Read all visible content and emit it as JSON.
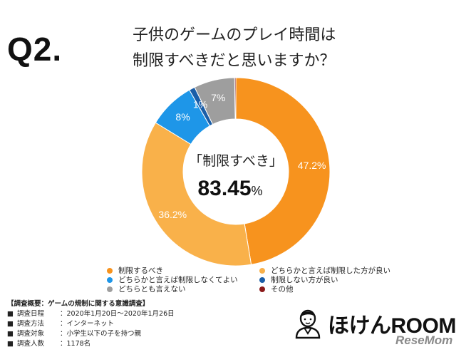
{
  "question_label": "Q2.",
  "title_lines": [
    "子供のゲームのプレイ時間は",
    "制限すべきだと思いますか？"
  ],
  "center": {
    "label": "「制限すべき」",
    "value": "83.45",
    "unit": "%"
  },
  "chart_data": {
    "type": "pie",
    "donut": true,
    "categories": [
      "制限するべき",
      "どちらかと言えば制限した方が良い",
      "どちらかと言えば制限しなくてよい",
      "制限しない方が良い",
      "どちらとも言えない",
      "その他"
    ],
    "values": [
      47.2,
      36.2,
      8,
      1,
      7,
      0.2
    ],
    "data_labels": [
      "47.2%",
      "36.2%",
      "8%",
      "1%",
      "7%",
      ""
    ],
    "colors": [
      "#F7931E",
      "#F9B14A",
      "#1E96E8",
      "#1A5EA8",
      "#9E9E9E",
      "#8B1A1A"
    ],
    "label_colors": [
      "#ffffff",
      "#ffffff",
      "#ffffff",
      "#ffffff",
      "#ffffff",
      "#ffffff"
    ],
    "legend_position": "bottom"
  },
  "legend": [
    {
      "label": "制限するべき",
      "color": "#F7931E"
    },
    {
      "label": "どちらかと言えば制限した方が良い",
      "color": "#F9B14A"
    },
    {
      "label": "どちらかと言えば制限しなくてよい",
      "color": "#1E96E8"
    },
    {
      "label": "制限しない方が良い",
      "color": "#1A5EA8"
    },
    {
      "label": "どちらとも言えない",
      "color": "#9E9E9E"
    },
    {
      "label": "その他",
      "color": "#8B1A1A"
    }
  ],
  "survey": {
    "heading": "【調査概要：ゲームの規制に関する意識調査】",
    "rows": [
      {
        "key": "調査日程",
        "value": "：2020年1月20日～2020年1月26日"
      },
      {
        "key": "調査方法",
        "value": "：インターネット"
      },
      {
        "key": "調査対象",
        "value": "：小学生以下の子を持つ親"
      },
      {
        "key": "調査人数",
        "value": "：1178名"
      }
    ]
  },
  "logo_text": "ほけんROOM",
  "watermark": "ReseMom"
}
